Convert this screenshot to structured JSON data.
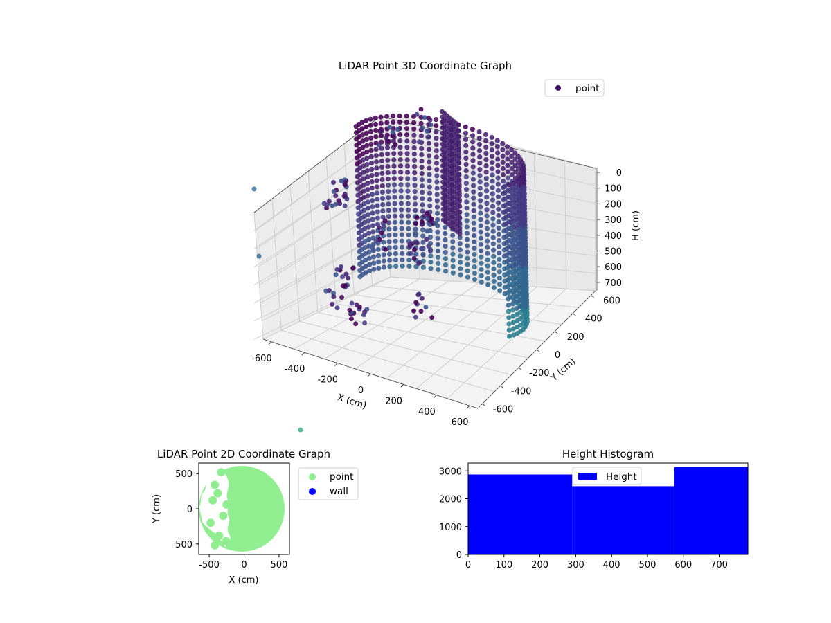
{
  "chart_data": [
    {
      "type": "scatter3d",
      "title": "LiDAR Point 3D Coordinate Graph",
      "xlabel": "X (cm)",
      "ylabel": "Y (cm)",
      "zlabel": "H (cm)",
      "xlim": [
        -650,
        650
      ],
      "ylim": [
        -650,
        650
      ],
      "zlim": [
        0,
        780
      ],
      "z_inverted": true,
      "x_ticks": [
        "-600",
        "-400",
        "-200",
        "0",
        "200",
        "400",
        "600"
      ],
      "y_ticks": [
        "-600",
        "-400",
        "-200",
        "0",
        "200",
        "400",
        "600"
      ],
      "z_ticks": [
        "0",
        "100",
        "200",
        "300",
        "400",
        "500",
        "600",
        "700"
      ],
      "grid": true,
      "legend": [
        "point"
      ],
      "legend_position": "top-right",
      "colors": {
        "point": "#45186f",
        "colormap": "viridis"
      },
      "series": [
        {
          "name": "point",
          "description_points": [
            {
              "x": 0,
              "y": 0,
              "h": 0
            },
            {
              "x": 600,
              "y": 0,
              "h": 700
            },
            {
              "x": -550,
              "y": 100,
              "h": 400
            },
            {
              "x": -400,
              "y": -300,
              "h": 300
            },
            {
              "x": -200,
              "y": -500,
              "h": 600
            }
          ]
        }
      ]
    },
    {
      "type": "scatter",
      "title": "LiDAR Point 2D Coordinate Graph",
      "xlabel": "X (cm)",
      "ylabel": "Y (cm)",
      "xlim": [
        -650,
        650
      ],
      "ylim": [
        -650,
        650
      ],
      "x_ticks": [
        "-500",
        "0",
        "500"
      ],
      "y_ticks": [
        "-500",
        "0",
        "500"
      ],
      "legend": [
        "point",
        "wall"
      ],
      "legend_position": "outside-right",
      "colors": {
        "point": "#90ee90",
        "wall": "#0000ff"
      }
    },
    {
      "type": "bar",
      "title": "Height Histogram",
      "xlim": [
        0,
        780
      ],
      "ylim": [
        0,
        3280
      ],
      "x_ticks": [
        "0",
        "100",
        "200",
        "300",
        "400",
        "500",
        "600",
        "700"
      ],
      "y_ticks": [
        "0",
        "1000",
        "2000",
        "3000"
      ],
      "bins": [
        {
          "from": 0,
          "to": 290,
          "count": 2870
        },
        {
          "from": 290,
          "to": 575,
          "count": 2450
        },
        {
          "from": 575,
          "to": 780,
          "count": 3140
        }
      ],
      "legend": [
        "Height"
      ],
      "legend_position": "top-center",
      "colors": {
        "bar": "#0000ff"
      }
    }
  ]
}
